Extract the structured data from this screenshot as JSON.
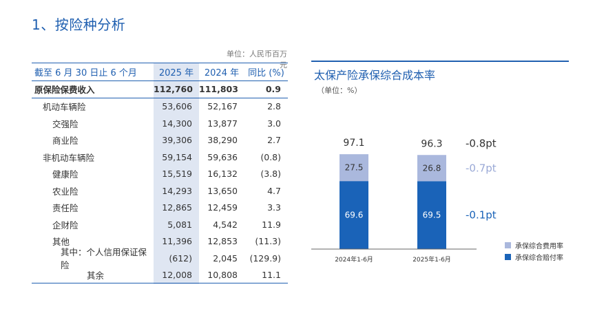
{
  "page_title": "1、按险种分析",
  "table": {
    "unit": "单位：人民币百万元",
    "headers": [
      "截至 6 月 30 日止 6 个月",
      "2025 年",
      "2024 年",
      "同比 (%)"
    ],
    "rows": [
      {
        "label": "原保险保费收入",
        "v2025": "112,760",
        "v2024": "111,803",
        "yoy": "0.9",
        "level": 0
      },
      {
        "label": "机动车辆险",
        "v2025": "53,606",
        "v2024": "52,167",
        "yoy": "2.8",
        "level": 1
      },
      {
        "label": "交强险",
        "v2025": "14,300",
        "v2024": "13,877",
        "yoy": "3.0",
        "level": 2
      },
      {
        "label": "商业险",
        "v2025": "39,306",
        "v2024": "38,290",
        "yoy": "2.7",
        "level": 2
      },
      {
        "label": "非机动车辆险",
        "v2025": "59,154",
        "v2024": "59,636",
        "yoy": "(0.8)",
        "level": 1
      },
      {
        "label": "健康险",
        "v2025": "15,519",
        "v2024": "16,132",
        "yoy": "(3.8)",
        "level": 2
      },
      {
        "label": "农业险",
        "v2025": "14,293",
        "v2024": "13,650",
        "yoy": "4.7",
        "level": 2
      },
      {
        "label": "责任险",
        "v2025": "12,865",
        "v2024": "12,459",
        "yoy": "3.3",
        "level": 2
      },
      {
        "label": "企财险",
        "v2025": "5,081",
        "v2024": "4,542",
        "yoy": "11.9",
        "level": 2
      },
      {
        "label": "其他",
        "v2025": "11,396",
        "v2024": "12,853",
        "yoy": "(11.3)",
        "level": 2
      },
      {
        "label": "其中：个人信用保证保险",
        "v2025": "(612)",
        "v2024": "2,045",
        "yoy": "(129.9)",
        "level": 3
      },
      {
        "label": "其余",
        "v2025": "12,008",
        "v2024": "10,808",
        "yoy": "11.1",
        "level": 4
      }
    ]
  },
  "chart_data": {
    "type": "bar",
    "stacked": true,
    "title": "太保产险承保综合成本率",
    "unit": "（单位：%）",
    "categories": [
      "2024年1-6月",
      "2025年1-6月"
    ],
    "series": [
      {
        "name": "承保综合赔付率",
        "values": [
          69.6,
          69.5
        ],
        "color": "#1a63b8"
      },
      {
        "name": "承保综合费用率",
        "values": [
          27.5,
          26.8
        ],
        "color": "#aab8dd"
      }
    ],
    "totals": [
      97.1,
      96.3
    ],
    "changes": [
      {
        "label": "-0.8pt",
        "color": "#333333"
      },
      {
        "label": "-0.7pt",
        "color": "#9aa9d6"
      },
      {
        "label": "-0.1pt",
        "color": "#1a63b8"
      }
    ],
    "legend_position": "bottom-right"
  },
  "colors": {
    "accent": "#1f5fb0",
    "highlight_column": "#dfe6f2"
  }
}
